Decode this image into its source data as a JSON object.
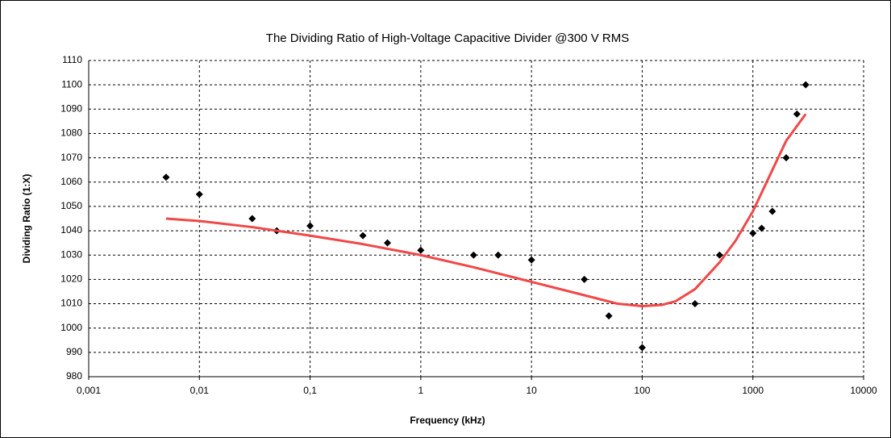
{
  "chart_data": {
    "type": "scatter",
    "title": "The Dividing Ratio of High-Voltage Capacitive Divider @300 V RMS",
    "xlabel": "Frequency (kHz)",
    "ylabel": "Dividing Ratio (1:X)",
    "xscale": "log",
    "grid": true,
    "xlim": [
      0.001,
      10000
    ],
    "xticks": [
      {
        "value": 0.001,
        "label": "0,001"
      },
      {
        "value": 0.01,
        "label": "0,01"
      },
      {
        "value": 0.1,
        "label": "0,1"
      },
      1,
      10,
      100,
      1000,
      10000
    ],
    "ylim": [
      980,
      1110
    ],
    "yticks": [
      980,
      990,
      1000,
      1010,
      1020,
      1030,
      1040,
      1050,
      1060,
      1070,
      1080,
      1090,
      1100,
      1110
    ],
    "series": [
      {
        "mode": "markers",
        "color": "#000000",
        "x": [
          0.005,
          0.01,
          0.03,
          0.05,
          0.1,
          0.3,
          0.5,
          1,
          3,
          5,
          10,
          30,
          50,
          100,
          300,
          500,
          1000,
          1200,
          1500,
          2000,
          2500,
          3000
        ],
        "values": [
          1062,
          1055,
          1045,
          1040,
          1042,
          1038,
          1035,
          1032,
          1030,
          1030,
          1028,
          1020,
          1005,
          992,
          1010,
          1030,
          1039,
          1041,
          1048,
          1070,
          1088,
          1100
        ]
      },
      {
        "mode": "line",
        "color": "#f04848",
        "x": [
          0.005,
          0.01,
          0.03,
          0.1,
          0.3,
          1,
          3,
          10,
          30,
          60,
          100,
          150,
          200,
          300,
          500,
          700,
          1000,
          1500,
          2000,
          3000
        ],
        "values": [
          1045,
          1044,
          1041.5,
          1038,
          1034.5,
          1030,
          1025,
          1019,
          1013.5,
          1010,
          1009,
          1009.5,
          1011,
          1016,
          1027,
          1036,
          1048,
          1065,
          1077,
          1088
        ]
      }
    ]
  }
}
